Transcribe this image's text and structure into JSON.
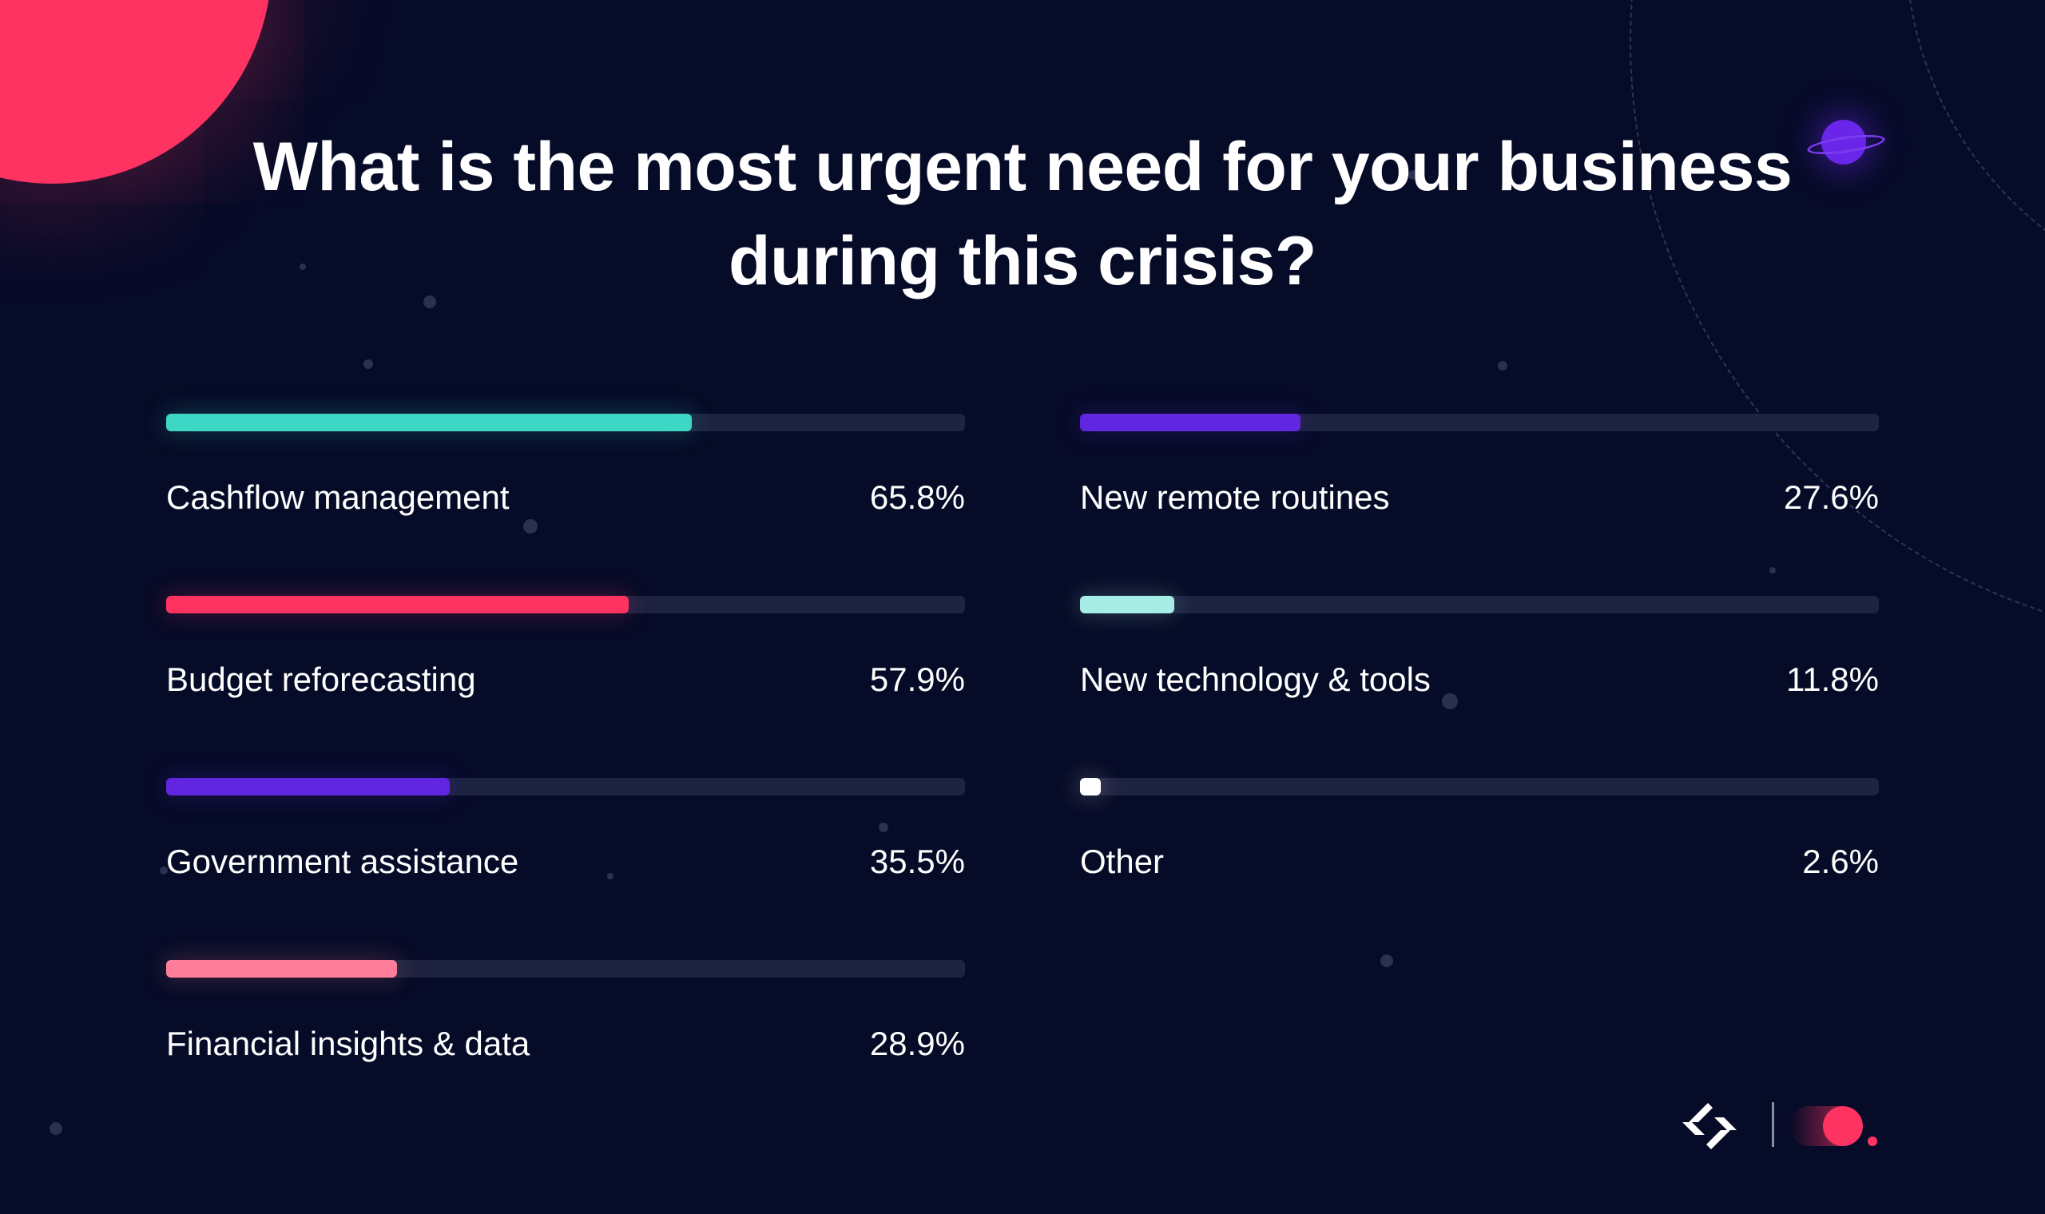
{
  "title": "What is the most urgent need for your business during this crisis?",
  "colors": {
    "background": "#060b27",
    "track": "#1d2340",
    "accent": "#ff3362"
  },
  "chart_data": {
    "type": "bar",
    "orientation": "horizontal",
    "title": "What is the most urgent need for your business during this crisis?",
    "xlim": [
      0,
      100
    ],
    "unit": "%",
    "grid": false,
    "categories": [
      "Cashflow management",
      "Budget reforecasting",
      "Government assistance",
      "Financial insights & data",
      "New remote routines",
      "New technology & tools",
      "Other"
    ],
    "values": [
      65.8,
      57.9,
      35.5,
      28.9,
      27.6,
      11.8,
      2.6
    ],
    "value_labels": [
      "65.8%",
      "57.9%",
      "35.5%",
      "28.9%",
      "27.6%",
      "11.8%",
      "2.6%"
    ],
    "bar_colors": [
      "#3ed6c5",
      "#ff3362",
      "#6126e0",
      "#ff7f9b",
      "#6126e0",
      "#a8ece6",
      "#ffffff"
    ]
  },
  "logo": {
    "icon": "chevron-arrows-icon",
    "dot_icon": "red-dot-icon"
  }
}
